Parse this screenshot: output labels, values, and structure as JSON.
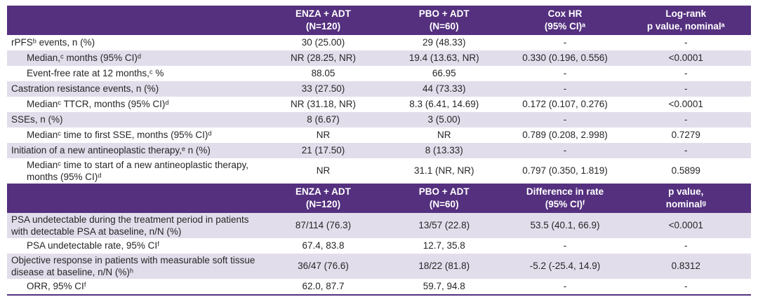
{
  "colors": {
    "header_bg": "#54307e",
    "row_alt_bg": "#e2ddeb",
    "row_bg": "#ffffff",
    "header_text": "#ffffff",
    "body_text": "#262626",
    "bottom_border": "#54307e"
  },
  "chart_data": {
    "type": "table",
    "note": "Two stacked efficacy-results sub-tables sharing treatment-arm columns"
  },
  "sections": [
    {
      "header": {
        "cols": [
          {
            "line1": "ENZA + ADT",
            "line2": "(N=120)"
          },
          {
            "line1": "PBO + ADT",
            "line2": "(N=60)"
          },
          {
            "line1": "Cox HR",
            "line2": "(95% CI)ᵃ"
          },
          {
            "line1": "Log-rank",
            "line2": "p value, nominalᵃ"
          }
        ]
      },
      "rows": [
        {
          "label": "rPFSᵇ events, n (%)",
          "values": [
            "30 (25.00)",
            "29 (48.33)",
            "-",
            "-"
          ]
        },
        {
          "label": "Median,ᶜ months (95% CI)ᵈ",
          "values": [
            "NR (28.25, NR)",
            "19.4 (13.63, NR)",
            "0.330 (0.196, 0.556)",
            "<0.0001"
          ]
        },
        {
          "label": "Event-free rate at 12 months,ᶜ %",
          "values": [
            "88.05",
            "66.95",
            "-",
            "-"
          ]
        },
        {
          "label": "Castration resistance events, n (%)",
          "values": [
            "33 (27.50)",
            "44 (73.33)",
            "-",
            "-"
          ]
        },
        {
          "label": "Medianᶜ TTCR, months (95% CI)ᵈ",
          "values": [
            "NR (31.18, NR)",
            "8.3 (6.41, 14.69)",
            "0.172 (0.107, 0.276)",
            "<0.0001"
          ]
        },
        {
          "label": "SSEs, n (%)",
          "values": [
            "8 (6.67)",
            "3 (5.00)",
            "-",
            "-"
          ]
        },
        {
          "label": "Medianᶜ time to first SSE, months (95% CI)ᵈ",
          "values": [
            "NR",
            "NR",
            "0.789 (0.208, 2.998)",
            "0.7279"
          ]
        },
        {
          "label": "Initiation of a new antineoplastic therapy,ᵉ n (%)",
          "values": [
            "21 (17.50)",
            "8 (13.33)",
            "-",
            "-"
          ]
        },
        {
          "label": "Medianᶜ time to start of a new antineoplastic therapy, months (95% CI)ᵈ",
          "values": [
            "NR",
            "31.1 (NR, NR)",
            "0.797 (0.350, 1.819)",
            "0.5899"
          ]
        }
      ]
    },
    {
      "header": {
        "cols": [
          {
            "line1": "ENZA + ADT",
            "line2": "(N=120)"
          },
          {
            "line1": "PBO + ADT",
            "line2": "(N=60)"
          },
          {
            "line1": "Difference in rate",
            "line2": "(95% CI)ᶠ"
          },
          {
            "line1": "p value,",
            "line2": "nominalᵍ"
          }
        ]
      },
      "rows": [
        {
          "label": "PSA undetectable during the treatment period in patients with detectable PSA at baseline, n/N (%)",
          "values": [
            "87/114 (76.3)",
            "13/57 (22.8)",
            "53.5 (40.1, 66.9)",
            "<0.0001"
          ]
        },
        {
          "label": "PSA undetectable rate, 95% CIᶠ",
          "values": [
            "67.4, 83.8",
            "12.7, 35.8",
            "-",
            "-"
          ]
        },
        {
          "label": "Objective response in patients with measurable soft tissue disease at baseline, n/N (%)ʰ",
          "values": [
            "36/47 (76.6)",
            "18/22 (81.8)",
            "-5.2 (-25.4, 14.9)",
            "0.8312"
          ]
        },
        {
          "label": "ORR, 95% CIᶠ",
          "values": [
            "62.0, 87.7",
            "59.7, 94.8",
            "-",
            "-"
          ]
        }
      ]
    }
  ]
}
